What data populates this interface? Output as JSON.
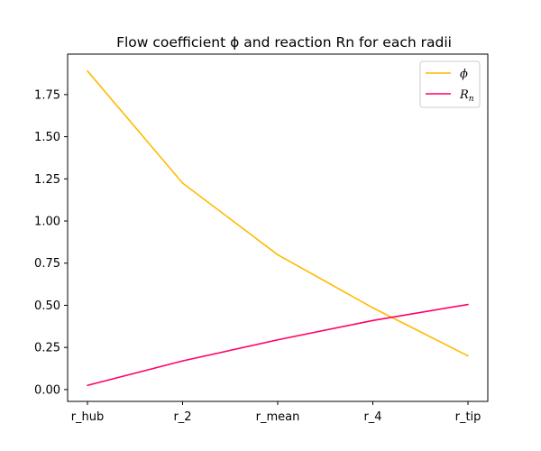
{
  "chart_data": {
    "type": "line",
    "title": "Flow coefficient ϕ and reaction Rn for each radii",
    "xlabel": "",
    "ylabel": "",
    "categories": [
      "r_hub",
      "r_2",
      "r_mean",
      "r_4",
      "r_tip"
    ],
    "yticks": [
      "0.00",
      "0.25",
      "0.50",
      "0.75",
      "1.00",
      "1.25",
      "1.50",
      "1.75"
    ],
    "ylim": [
      -0.07,
      1.99
    ],
    "grid": false,
    "legend_position": "top-right",
    "series": [
      {
        "name": "ϕ",
        "color": "#ffb900",
        "values": [
          1.89,
          1.225,
          0.8,
          0.485,
          0.2
        ]
      },
      {
        "name": "R",
        "subscript": "n",
        "color": "#ff0066",
        "values": [
          0.025,
          0.17,
          0.295,
          0.41,
          0.505
        ]
      }
    ]
  }
}
